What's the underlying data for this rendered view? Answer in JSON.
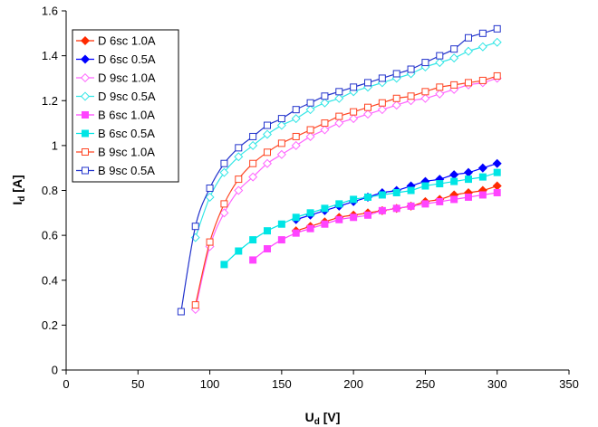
{
  "chart_data": {
    "type": "scatter",
    "title": "",
    "xlabel": {
      "main": "U",
      "sub": "d",
      "unit": " [V]"
    },
    "ylabel": {
      "main": "I",
      "sub": "d",
      "unit": " [A]"
    },
    "xlim": [
      0,
      350
    ],
    "ylim": [
      0,
      1.6
    ],
    "xticks": [
      0,
      50,
      100,
      150,
      200,
      250,
      300,
      350
    ],
    "yticks": [
      0,
      0.2,
      0.4,
      0.6,
      0.8,
      1,
      1.2,
      1.4,
      1.6
    ],
    "xtick_labels": [
      "0",
      "50",
      "100",
      "150",
      "200",
      "250",
      "300",
      "350"
    ],
    "ytick_labels": [
      "0",
      "0.2",
      "0.4",
      "0.6",
      "0.8",
      "1",
      "1.2",
      "1.4",
      "1.6"
    ],
    "grid": false,
    "legend_position": "top-left",
    "series": [
      {
        "name": "D 6sc 1.0A",
        "color": "#ff2a00",
        "marker": "diamond",
        "fill": true,
        "x": [
          160,
          170,
          180,
          190,
          200,
          210,
          220,
          230,
          240,
          250,
          260,
          270,
          280,
          290,
          300
        ],
        "y": [
          0.62,
          0.64,
          0.66,
          0.68,
          0.69,
          0.7,
          0.71,
          0.72,
          0.73,
          0.75,
          0.76,
          0.78,
          0.79,
          0.8,
          0.82
        ]
      },
      {
        "name": "D 6sc 0.5A",
        "color": "#0000ff",
        "marker": "diamond",
        "fill": true,
        "x": [
          160,
          170,
          180,
          190,
          200,
          210,
          220,
          230,
          240,
          250,
          260,
          270,
          280,
          290,
          300
        ],
        "y": [
          0.67,
          0.69,
          0.71,
          0.73,
          0.75,
          0.77,
          0.79,
          0.8,
          0.82,
          0.84,
          0.85,
          0.87,
          0.88,
          0.9,
          0.92
        ]
      },
      {
        "name": "D 9sc 1.0A",
        "color": "#ff66ff",
        "marker": "diamond",
        "fill": false,
        "x": [
          90,
          100,
          110,
          120,
          130,
          140,
          150,
          160,
          170,
          180,
          190,
          200,
          210,
          220,
          230,
          240,
          250,
          260,
          270,
          280,
          290,
          300
        ],
        "y": [
          0.27,
          0.55,
          0.7,
          0.8,
          0.86,
          0.92,
          0.96,
          1.0,
          1.04,
          1.07,
          1.1,
          1.12,
          1.14,
          1.16,
          1.18,
          1.2,
          1.21,
          1.23,
          1.25,
          1.27,
          1.28,
          1.3
        ]
      },
      {
        "name": "D 9sc 0.5A",
        "color": "#33e6e6",
        "marker": "diamond",
        "fill": false,
        "x": [
          90,
          100,
          110,
          120,
          130,
          140,
          150,
          160,
          170,
          180,
          190,
          200,
          210,
          220,
          230,
          240,
          250,
          260,
          270,
          280,
          290,
          300
        ],
        "y": [
          0.59,
          0.77,
          0.88,
          0.95,
          1.0,
          1.05,
          1.09,
          1.12,
          1.16,
          1.19,
          1.21,
          1.24,
          1.26,
          1.28,
          1.3,
          1.32,
          1.35,
          1.37,
          1.39,
          1.42,
          1.44,
          1.46
        ]
      },
      {
        "name": "B 6sc 1.0A",
        "color": "#ff44ff",
        "marker": "square",
        "fill": true,
        "x": [
          130,
          140,
          150,
          160,
          170,
          180,
          190,
          200,
          210,
          220,
          230,
          240,
          250,
          260,
          270,
          280,
          290,
          300
        ],
        "y": [
          0.49,
          0.54,
          0.58,
          0.61,
          0.63,
          0.65,
          0.67,
          0.68,
          0.69,
          0.71,
          0.72,
          0.73,
          0.74,
          0.75,
          0.76,
          0.77,
          0.78,
          0.79
        ]
      },
      {
        "name": "B 6sc 0.5A",
        "color": "#00e5e5",
        "marker": "square",
        "fill": true,
        "x": [
          110,
          120,
          130,
          140,
          150,
          160,
          170,
          180,
          190,
          200,
          210,
          220,
          230,
          240,
          250,
          260,
          270,
          280,
          290,
          300
        ],
        "y": [
          0.47,
          0.53,
          0.58,
          0.62,
          0.65,
          0.68,
          0.7,
          0.72,
          0.74,
          0.76,
          0.77,
          0.78,
          0.79,
          0.8,
          0.82,
          0.83,
          0.84,
          0.85,
          0.86,
          0.88
        ]
      },
      {
        "name": "B 9sc 1.0A",
        "color": "#ff4422",
        "marker": "square",
        "fill": false,
        "x": [
          90,
          100,
          110,
          120,
          130,
          140,
          150,
          160,
          170,
          180,
          190,
          200,
          210,
          220,
          230,
          240,
          250,
          260,
          270,
          280,
          290,
          300
        ],
        "y": [
          0.29,
          0.57,
          0.74,
          0.85,
          0.92,
          0.97,
          1.01,
          1.04,
          1.07,
          1.1,
          1.13,
          1.15,
          1.17,
          1.19,
          1.21,
          1.22,
          1.24,
          1.26,
          1.27,
          1.28,
          1.29,
          1.31
        ]
      },
      {
        "name": "B 9sc 0.5A",
        "color": "#2233cc",
        "marker": "square",
        "fill": false,
        "x": [
          80,
          90,
          100,
          110,
          120,
          130,
          140,
          150,
          160,
          170,
          180,
          190,
          200,
          210,
          220,
          230,
          240,
          250,
          260,
          270,
          280,
          290,
          300
        ],
        "y": [
          0.26,
          0.64,
          0.81,
          0.92,
          0.99,
          1.04,
          1.09,
          1.12,
          1.16,
          1.19,
          1.22,
          1.24,
          1.26,
          1.28,
          1.3,
          1.32,
          1.34,
          1.37,
          1.4,
          1.43,
          1.48,
          1.5,
          1.52
        ]
      }
    ]
  }
}
